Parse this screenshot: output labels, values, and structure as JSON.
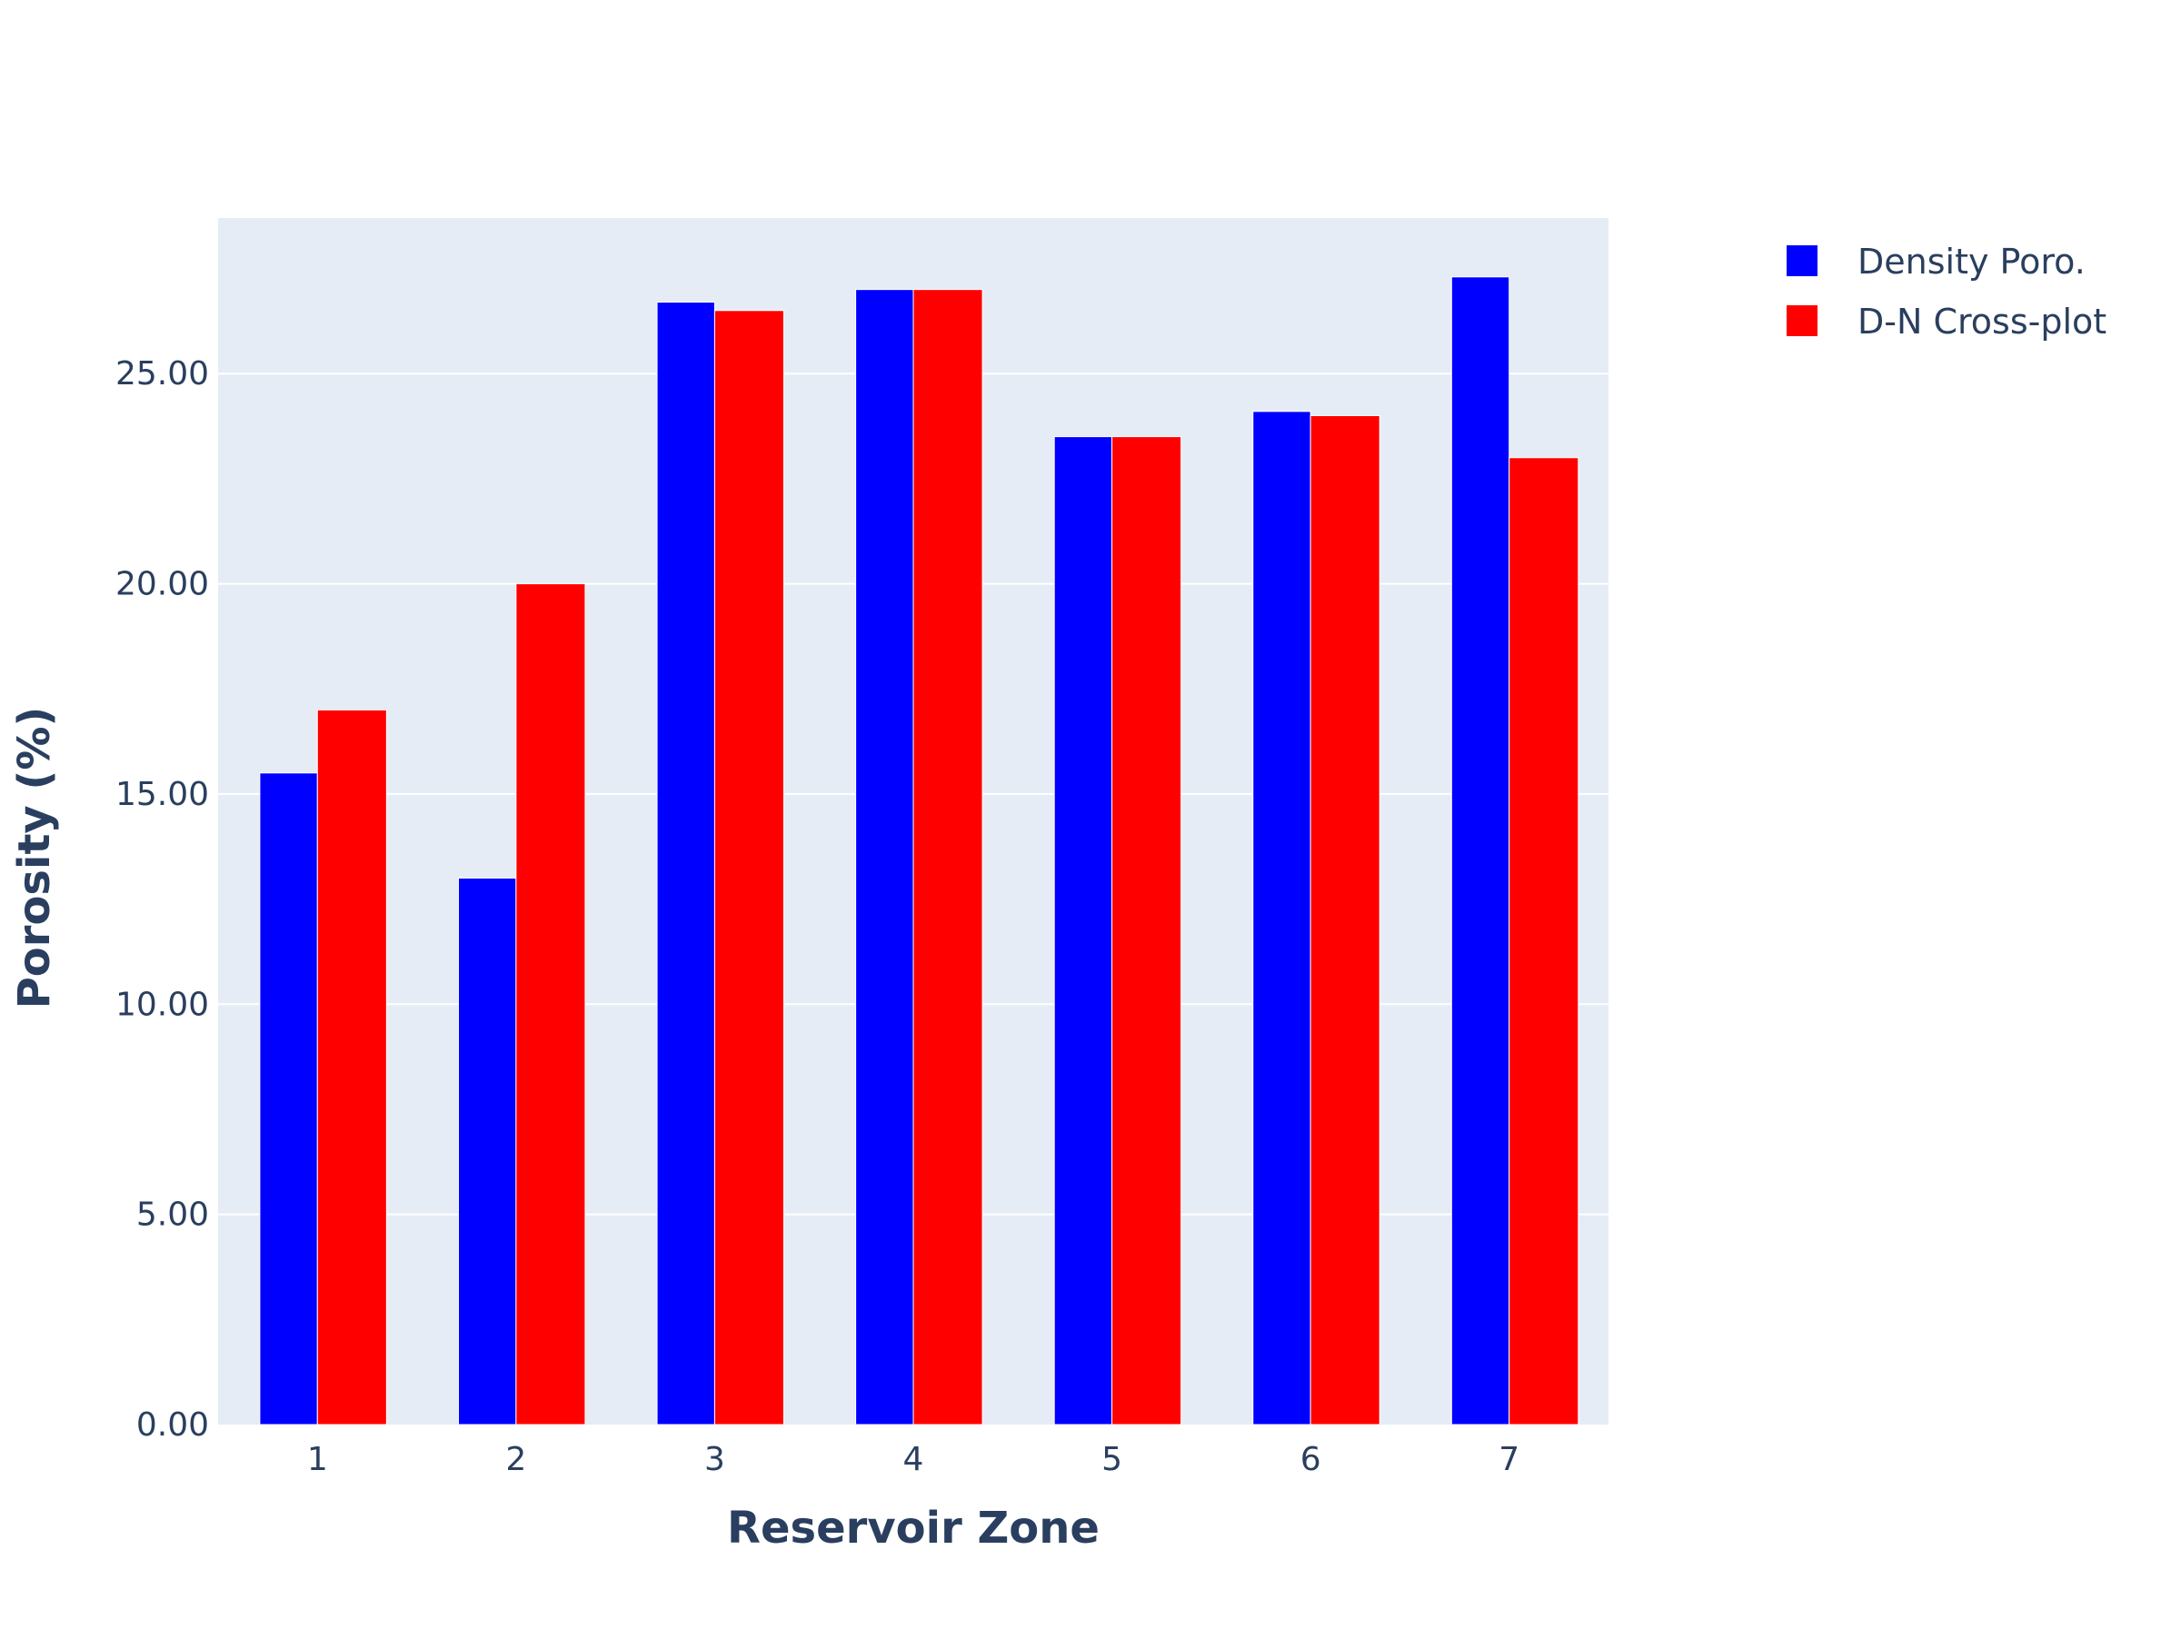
{
  "chart_data": {
    "type": "bar",
    "title": "",
    "xlabel": "Reservoir Zone",
    "ylabel": "Porosity (%)",
    "categories": [
      "1",
      "2",
      "3",
      "4",
      "5",
      "6",
      "7"
    ],
    "series": [
      {
        "name": "Density Poro.",
        "color": "#0000ff",
        "values": [
          15.5,
          13.0,
          26.7,
          27.0,
          23.5,
          24.1,
          27.3
        ]
      },
      {
        "name": "D-N Cross-plot",
        "color": "#ff0000",
        "values": [
          17.0,
          20.0,
          26.5,
          27.0,
          23.5,
          24.0,
          23.0
        ]
      }
    ],
    "ylim": [
      0,
      28.7
    ],
    "yticks": [
      0,
      5,
      10,
      15,
      20,
      25
    ],
    "ytick_labels": [
      "0.00",
      "5.00",
      "10.00",
      "15.00",
      "20.00",
      "25.00"
    ],
    "grid": true,
    "legend_position": "top-right",
    "plot_background": "#e5ecf6",
    "text_color": "#2a3f5f"
  }
}
